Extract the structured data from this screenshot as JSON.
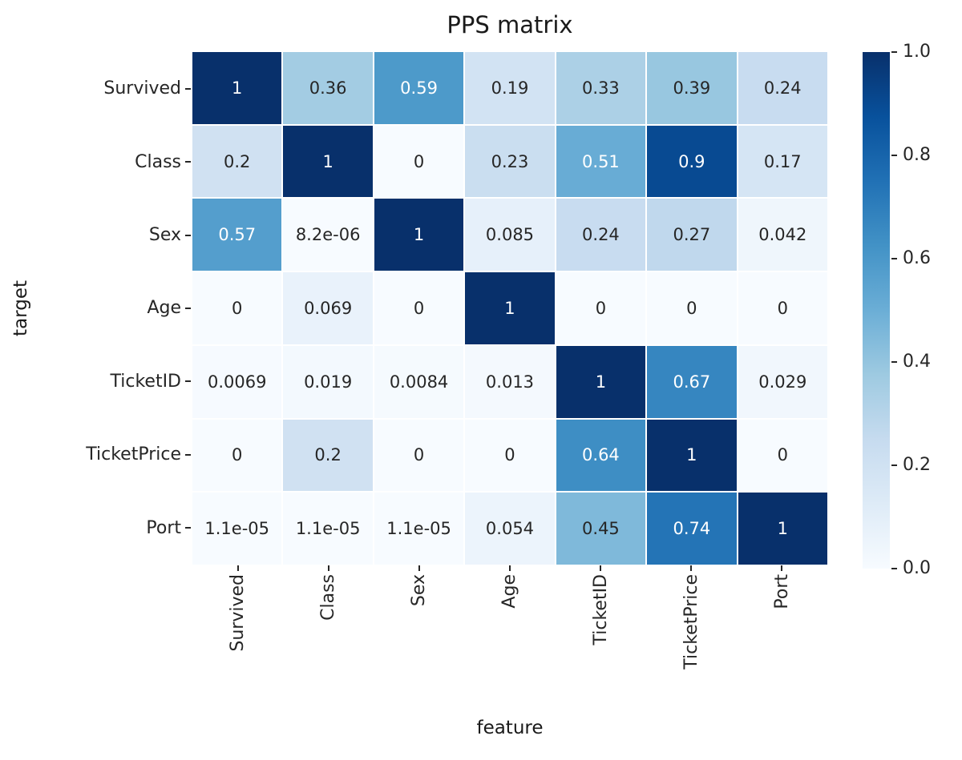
{
  "chart_data": {
    "type": "heatmap",
    "title": "PPS matrix",
    "xlabel": "feature",
    "ylabel": "target",
    "x_categories": [
      "Survived",
      "Class",
      "Sex",
      "Age",
      "TicketID",
      "TicketPrice",
      "Port"
    ],
    "y_categories": [
      "Survived",
      "Class",
      "Sex",
      "Age",
      "TicketID",
      "TicketPrice",
      "Port"
    ],
    "values": [
      [
        1,
        0.36,
        0.59,
        0.19,
        0.33,
        0.39,
        0.24
      ],
      [
        0.2,
        1,
        0,
        0.23,
        0.51,
        0.9,
        0.17
      ],
      [
        0.57,
        8.2e-06,
        1,
        0.085,
        0.24,
        0.27,
        0.042
      ],
      [
        0,
        0.069,
        0,
        1,
        0,
        0,
        0
      ],
      [
        0.0069,
        0.019,
        0.0084,
        0.013,
        1,
        0.67,
        0.029
      ],
      [
        0,
        0.2,
        0,
        0,
        0.64,
        1,
        0
      ],
      [
        1.1e-05,
        1.1e-05,
        1.1e-05,
        0.054,
        0.45,
        0.74,
        1
      ]
    ],
    "cell_labels": [
      [
        "1",
        "0.36",
        "0.59",
        "0.19",
        "0.33",
        "0.39",
        "0.24"
      ],
      [
        "0.2",
        "1",
        "0",
        "0.23",
        "0.51",
        "0.9",
        "0.17"
      ],
      [
        "0.57",
        "8.2e-06",
        "1",
        "0.085",
        "0.24",
        "0.27",
        "0.042"
      ],
      [
        "0",
        "0.069",
        "0",
        "1",
        "0",
        "0",
        "0"
      ],
      [
        "0.0069",
        "0.019",
        "0.0084",
        "0.013",
        "1",
        "0.67",
        "0.029"
      ],
      [
        "0",
        "0.2",
        "0",
        "0",
        "0.64",
        "1",
        "0"
      ],
      [
        "1.1e-05",
        "1.1e-05",
        "1.1e-05",
        "0.054",
        "0.45",
        "0.74",
        "1"
      ]
    ],
    "value_range": [
      0,
      1
    ],
    "colormap": "Blues",
    "colormap_stops": [
      {
        "pos": 0.0,
        "rgb": [
          247,
          251,
          255
        ]
      },
      {
        "pos": 0.125,
        "rgb": [
          222,
          235,
          247
        ]
      },
      {
        "pos": 0.25,
        "rgb": [
          198,
          219,
          239
        ]
      },
      {
        "pos": 0.375,
        "rgb": [
          158,
          202,
          225
        ]
      },
      {
        "pos": 0.5,
        "rgb": [
          107,
          174,
          214
        ]
      },
      {
        "pos": 0.625,
        "rgb": [
          66,
          146,
          198
        ]
      },
      {
        "pos": 0.75,
        "rgb": [
          33,
          113,
          181
        ]
      },
      {
        "pos": 0.875,
        "rgb": [
          8,
          81,
          156
        ]
      },
      {
        "pos": 1.0,
        "rgb": [
          8,
          48,
          107
        ]
      }
    ],
    "colorbar": {
      "position": "right",
      "min": 0,
      "max": 1,
      "tick_labels": [
        "1.0",
        "0.8",
        "0.6",
        "0.4",
        "0.2",
        "0.0"
      ],
      "tick_values": [
        1.0,
        0.8,
        0.6,
        0.4,
        0.2,
        0.0
      ]
    },
    "grid_line_color": "#ffffff",
    "background_color": "#ffffff",
    "annotation_color_dark": "#262626",
    "annotation_color_light": "#ffffff",
    "tick_color": "#262626",
    "grid": false,
    "legend_position": "none"
  }
}
